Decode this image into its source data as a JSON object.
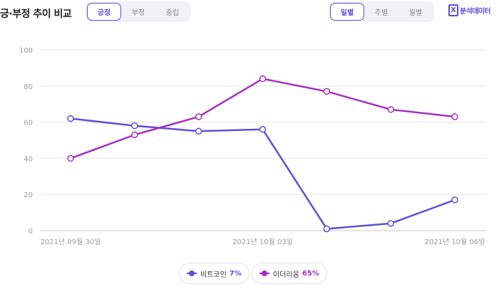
{
  "header": {
    "title": "긍·부정 추이 비교",
    "sentiment_tabs": [
      "긍정",
      "부정",
      "중립"
    ],
    "sentiment_active": 0,
    "period_tabs": [
      "일별",
      "주별",
      "월별"
    ],
    "period_active": 0,
    "analysis_label": "분석데이터",
    "analysis_icon": "excel-icon"
  },
  "colors": {
    "accent": "#5b4fd8",
    "series1": "#5b4fd8",
    "series2": "#a22fc4",
    "grid": "#e6e6e6"
  },
  "legend": [
    {
      "name": "비트코인",
      "pct": "7%"
    },
    {
      "name": "이더리움",
      "pct": "65%"
    }
  ],
  "chart_data": {
    "type": "line",
    "x": [
      "2021-09-30",
      "2021-10-01",
      "2021-10-02",
      "2021-10-03",
      "2021-10-04",
      "2021-10-05",
      "2021-10-06"
    ],
    "x_tick_labels": [
      "2021년 09월 30일",
      "2021년 10월 03일",
      "2021년 10월 06일"
    ],
    "x_tick_index": [
      0,
      3,
      6
    ],
    "y_ticks": [
      0,
      20,
      40,
      60,
      80,
      100
    ],
    "ylim": [
      0,
      100
    ],
    "grid": true,
    "legend_position": "bottom",
    "series": [
      {
        "name": "비트코인",
        "values": [
          62,
          58,
          55,
          56,
          1,
          4,
          17
        ]
      },
      {
        "name": "이더리움",
        "values": [
          40,
          53,
          63,
          84,
          77,
          67,
          63
        ]
      }
    ]
  }
}
